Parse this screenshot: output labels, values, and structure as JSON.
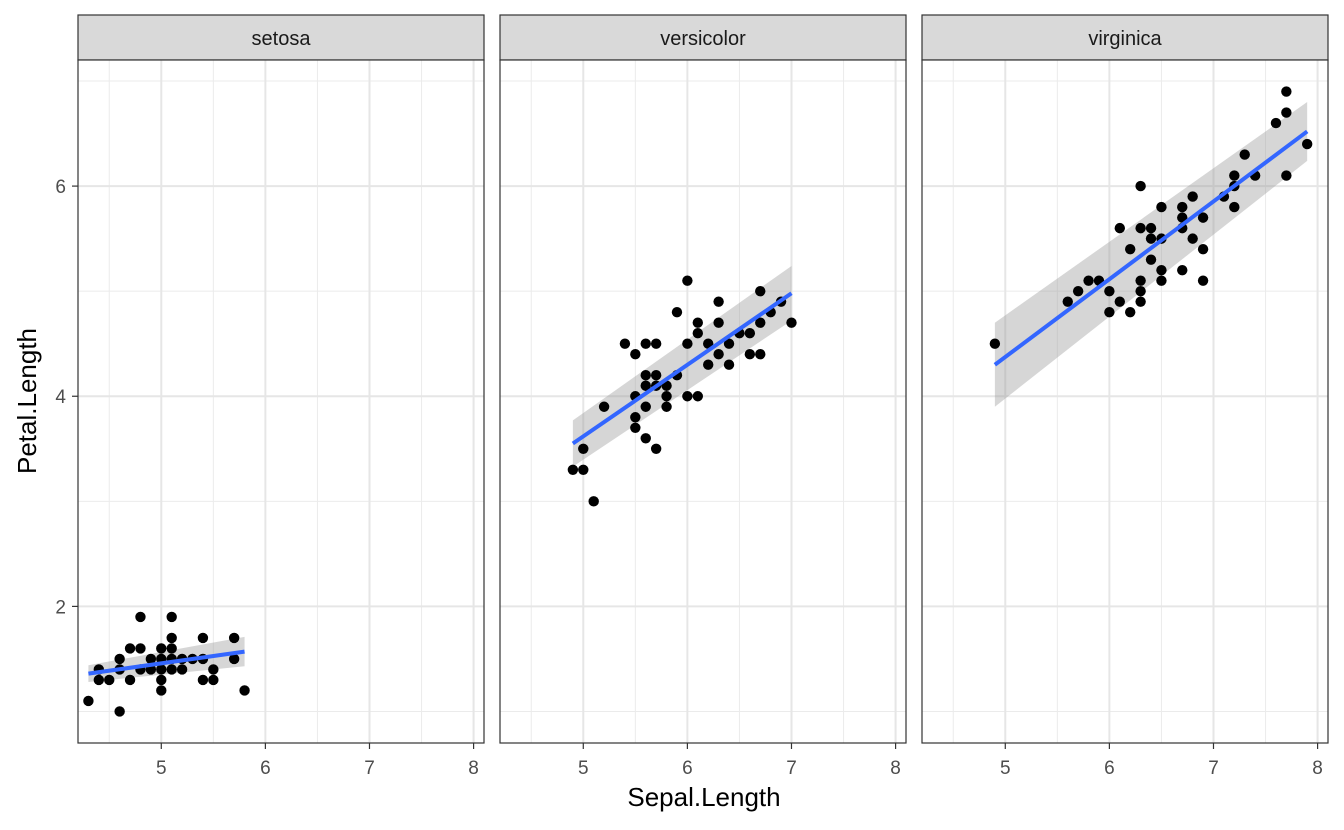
{
  "chart_data": {
    "type": "scatter",
    "facet_variable": "Species",
    "xlabel": "Sepal.Length",
    "ylabel": "Petal.Length",
    "xlim": [
      4.2,
      8.1
    ],
    "ylim": [
      0.7,
      7.2
    ],
    "x_ticks": [
      5,
      6,
      7,
      8
    ],
    "y_ticks": [
      2,
      4,
      6
    ],
    "x_tick_labels": [
      "5",
      "6",
      "7",
      "8"
    ],
    "y_tick_labels": [
      "2",
      "4",
      "6"
    ],
    "grid": true,
    "theme": "black-and-white",
    "point_color": "#000000",
    "fit_line_color": "#3366FF",
    "ci_band_color": "#999999",
    "panels": [
      {
        "label": "setosa",
        "fit": {
          "x": [
            4.3,
            5.8
          ],
          "y": [
            1.36,
            1.57
          ],
          "ci_halfwidth": [
            0.08,
            0.14
          ]
        },
        "points": [
          [
            4.3,
            1.1
          ],
          [
            4.4,
            1.4
          ],
          [
            4.4,
            1.3
          ],
          [
            4.5,
            1.3
          ],
          [
            4.6,
            1.0
          ],
          [
            4.6,
            1.4
          ],
          [
            4.6,
            1.5
          ],
          [
            4.7,
            1.6
          ],
          [
            4.7,
            1.3
          ],
          [
            4.8,
            1.4
          ],
          [
            4.8,
            1.6
          ],
          [
            4.8,
            1.9
          ],
          [
            4.9,
            1.5
          ],
          [
            4.9,
            1.4
          ],
          [
            5.0,
            1.6
          ],
          [
            5.0,
            1.4
          ],
          [
            5.0,
            1.5
          ],
          [
            5.0,
            1.2
          ],
          [
            5.0,
            1.3
          ],
          [
            5.1,
            1.4
          ],
          [
            5.1,
            1.5
          ],
          [
            5.1,
            1.7
          ],
          [
            5.1,
            1.9
          ],
          [
            5.1,
            1.6
          ],
          [
            5.2,
            1.5
          ],
          [
            5.2,
            1.4
          ],
          [
            5.3,
            1.5
          ],
          [
            5.4,
            1.7
          ],
          [
            5.4,
            1.5
          ],
          [
            5.4,
            1.3
          ],
          [
            5.5,
            1.4
          ],
          [
            5.5,
            1.3
          ],
          [
            5.7,
            1.5
          ],
          [
            5.7,
            1.7
          ],
          [
            5.8,
            1.2
          ]
        ]
      },
      {
        "label": "versicolor",
        "fit": {
          "x": [
            4.9,
            7.0
          ],
          "y": [
            3.55,
            4.98
          ],
          "ci_halfwidth": [
            0.22,
            0.26
          ]
        },
        "points": [
          [
            4.9,
            3.3
          ],
          [
            5.0,
            3.5
          ],
          [
            5.0,
            3.3
          ],
          [
            5.1,
            3.0
          ],
          [
            5.2,
            3.9
          ],
          [
            5.4,
            4.5
          ],
          [
            5.5,
            4.0
          ],
          [
            5.5,
            3.8
          ],
          [
            5.5,
            3.7
          ],
          [
            5.5,
            4.4
          ],
          [
            5.6,
            3.6
          ],
          [
            5.6,
            4.5
          ],
          [
            5.6,
            4.2
          ],
          [
            5.6,
            4.1
          ],
          [
            5.6,
            3.9
          ],
          [
            5.7,
            4.5
          ],
          [
            5.7,
            3.5
          ],
          [
            5.7,
            4.2
          ],
          [
            5.7,
            4.1
          ],
          [
            5.8,
            4.1
          ],
          [
            5.8,
            4.0
          ],
          [
            5.8,
            3.9
          ],
          [
            5.9,
            4.8
          ],
          [
            5.9,
            4.2
          ],
          [
            6.0,
            4.5
          ],
          [
            6.0,
            4.0
          ],
          [
            6.0,
            5.1
          ],
          [
            6.1,
            4.7
          ],
          [
            6.1,
            4.0
          ],
          [
            6.1,
            4.6
          ],
          [
            6.2,
            4.5
          ],
          [
            6.2,
            4.3
          ],
          [
            6.3,
            4.7
          ],
          [
            6.3,
            4.9
          ],
          [
            6.3,
            4.4
          ],
          [
            6.4,
            4.5
          ],
          [
            6.4,
            4.3
          ],
          [
            6.5,
            4.6
          ],
          [
            6.6,
            4.6
          ],
          [
            6.6,
            4.4
          ],
          [
            6.7,
            4.7
          ],
          [
            6.7,
            4.4
          ],
          [
            6.7,
            5.0
          ],
          [
            6.8,
            4.8
          ],
          [
            6.9,
            4.9
          ],
          [
            7.0,
            4.7
          ]
        ]
      },
      {
        "label": "virginica",
        "fit": {
          "x": [
            4.9,
            7.9
          ],
          "y": [
            4.3,
            6.52
          ],
          "ci_halfwidth": [
            0.4,
            0.28
          ]
        },
        "points": [
          [
            4.9,
            4.5
          ],
          [
            5.6,
            4.9
          ],
          [
            5.7,
            5.0
          ],
          [
            5.8,
            5.1
          ],
          [
            5.9,
            5.1
          ],
          [
            6.0,
            4.8
          ],
          [
            6.0,
            5.0
          ],
          [
            6.1,
            5.6
          ],
          [
            6.1,
            4.9
          ],
          [
            6.2,
            5.4
          ],
          [
            6.2,
            4.8
          ],
          [
            6.3,
            6.0
          ],
          [
            6.3,
            5.6
          ],
          [
            6.3,
            5.1
          ],
          [
            6.3,
            5.0
          ],
          [
            6.3,
            4.9
          ],
          [
            6.4,
            5.6
          ],
          [
            6.4,
            5.3
          ],
          [
            6.4,
            5.5
          ],
          [
            6.5,
            5.8
          ],
          [
            6.5,
            5.5
          ],
          [
            6.5,
            5.2
          ],
          [
            6.5,
            5.1
          ],
          [
            6.7,
            5.8
          ],
          [
            6.7,
            5.7
          ],
          [
            6.7,
            5.6
          ],
          [
            6.7,
            5.2
          ],
          [
            6.8,
            5.9
          ],
          [
            6.8,
            5.5
          ],
          [
            6.9,
            5.7
          ],
          [
            6.9,
            5.4
          ],
          [
            6.9,
            5.1
          ],
          [
            7.1,
            5.9
          ],
          [
            7.2,
            6.1
          ],
          [
            7.2,
            6.0
          ],
          [
            7.2,
            5.8
          ],
          [
            7.3,
            6.3
          ],
          [
            7.4,
            6.1
          ],
          [
            7.6,
            6.6
          ],
          [
            7.7,
            6.7
          ],
          [
            7.7,
            6.9
          ],
          [
            7.7,
            6.1
          ],
          [
            7.9,
            6.4
          ]
        ]
      }
    ]
  }
}
